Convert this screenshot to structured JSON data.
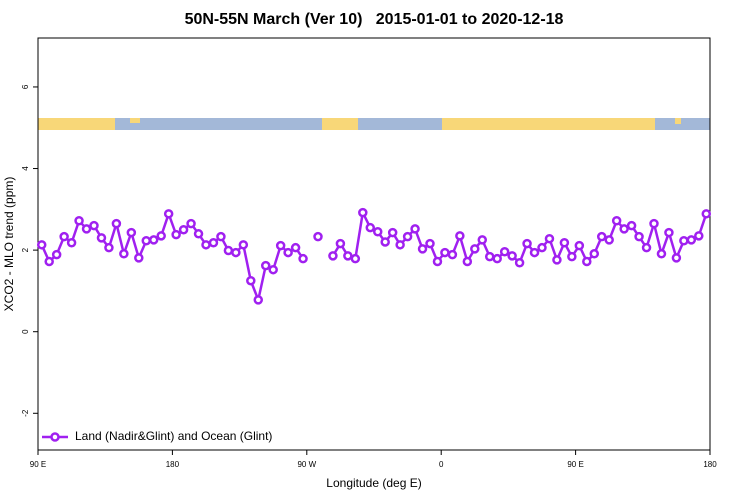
{
  "chart_data": {
    "type": "line",
    "title": "50N-55N March (Ver 10)   2015-01-01 to 2020-12-18",
    "xlabel": "Longitude (deg E)",
    "ylabel": "XCO2 - MLO trend (ppm)",
    "x": [
      92.5,
      97.5,
      102.5,
      107.5,
      112.5,
      117.5,
      122.5,
      127.5,
      132.5,
      137.5,
      142.5,
      147.5,
      152.5,
      157.5,
      162.5,
      167.5,
      172.5,
      177.5,
      182.5,
      187.5,
      192.5,
      197.5,
      202.5,
      207.5,
      212.5,
      217.5,
      222.5,
      227.5,
      232.5,
      237.5,
      242.5,
      247.5,
      252.5,
      257.5,
      262.5,
      267.5,
      272.5,
      277.5,
      282.5,
      287.5,
      292.5,
      297.5,
      302.5,
      307.5,
      312.5,
      317.5,
      322.5,
      327.5,
      332.5,
      337.5,
      342.5,
      347.5,
      352.5,
      357.5,
      362.5,
      367.5,
      372.5,
      377.5,
      382.5,
      387.5,
      392.5,
      397.5,
      402.5,
      407.5,
      412.5,
      417.5,
      422.5,
      427.5,
      432.5,
      437.5,
      442.5,
      447.5,
      452.5,
      457.5,
      462.5,
      467.5,
      472.5,
      477.5,
      482.5,
      487.5,
      492.5,
      497.5,
      502.5,
      507.5,
      512.5,
      517.5,
      522.5,
      527.5,
      532.5,
      537.5
    ],
    "series": [
      {
        "name": "Land (Nadir&Glint) and Ocean (Glint)",
        "color": "#a020f0",
        "values": [
          2.13,
          1.72,
          1.89,
          2.33,
          2.18,
          2.72,
          2.52,
          2.6,
          2.3,
          2.06,
          2.65,
          1.91,
          2.43,
          1.81,
          2.23,
          2.25,
          2.35,
          2.89,
          2.38,
          2.5,
          2.65,
          2.4,
          2.13,
          2.18,
          2.33,
          1.99,
          1.94,
          2.13,
          1.25,
          0.78,
          1.62,
          1.52,
          2.11,
          1.94,
          2.06,
          1.79,
          null,
          2.33,
          null,
          1.86,
          2.16,
          1.86,
          1.79,
          2.92,
          2.55,
          2.45,
          2.2,
          2.43,
          2.13,
          2.33,
          2.52,
          2.03,
          2.16,
          1.72,
          1.94,
          1.89,
          2.35,
          1.72,
          2.03,
          2.25,
          1.84,
          1.79,
          1.96,
          1.86,
          1.69,
          2.16,
          1.94,
          2.06,
          2.28,
          1.76,
          2.18,
          1.84,
          2.11,
          1.72,
          1.91,
          2.33,
          2.25,
          2.72,
          2.52,
          2.6,
          2.33,
          2.06,
          2.65,
          1.91,
          2.43,
          1.81,
          2.23,
          2.25,
          2.35,
          2.89
        ]
      }
    ],
    "xlim": [
      90,
      540
    ],
    "xticks": [
      {
        "value": 90,
        "label": "90 E"
      },
      {
        "value": 180,
        "label": "180"
      },
      {
        "value": 270,
        "label": "90 W"
      },
      {
        "value": 360,
        "label": "0"
      },
      {
        "value": 450,
        "label": "90 E"
      },
      {
        "value": 540,
        "label": "180"
      }
    ],
    "ylim": [
      -2.9,
      7.2
    ],
    "yticks": [
      -2,
      0,
      2,
      4,
      6
    ],
    "legend": "bottom-left"
  }
}
